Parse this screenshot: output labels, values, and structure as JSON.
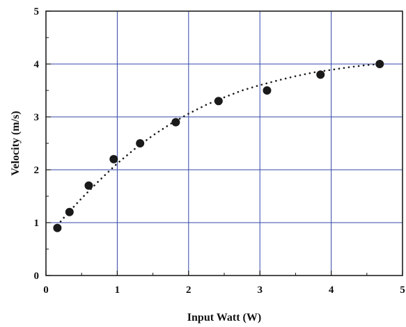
{
  "chart_data": {
    "type": "scatter",
    "title": "",
    "xlabel": "Input Watt (W)",
    "ylabel": "Velocity (m/s)",
    "xlim": [
      0,
      5
    ],
    "ylim": [
      0,
      5
    ],
    "x_ticks": [
      "0",
      "1",
      "2",
      "3",
      "4",
      "5"
    ],
    "y_ticks": [
      "0",
      "1",
      "2",
      "3",
      "4",
      "5"
    ],
    "grid": true,
    "series": [
      {
        "points": [
          {
            "x": 0.16,
            "y": 0.9
          },
          {
            "x": 0.33,
            "y": 1.2
          },
          {
            "x": 0.6,
            "y": 1.7
          },
          {
            "x": 0.95,
            "y": 2.2
          },
          {
            "x": 1.32,
            "y": 2.5
          },
          {
            "x": 1.82,
            "y": 2.9
          },
          {
            "x": 2.42,
            "y": 3.3
          },
          {
            "x": 3.1,
            "y": 3.5
          },
          {
            "x": 3.85,
            "y": 3.8
          },
          {
            "x": 4.68,
            "y": 4.0
          }
        ],
        "color": "#1a1a1a"
      }
    ],
    "fit_curve": {
      "style": "dotted",
      "color": "#1a1a1a",
      "x": [
        0.16,
        0.3,
        0.5,
        0.75,
        1.0,
        1.25,
        1.5,
        1.75,
        2.0,
        2.25,
        2.5,
        2.75,
        3.0,
        3.25,
        3.5,
        3.75,
        4.0,
        4.25,
        4.5,
        4.68
      ],
      "y": [
        0.95,
        1.17,
        1.46,
        1.8,
        2.12,
        2.4,
        2.65,
        2.87,
        3.06,
        3.23,
        3.37,
        3.5,
        3.6,
        3.69,
        3.77,
        3.84,
        3.89,
        3.94,
        3.98,
        4.0
      ]
    },
    "grid_color": "#3346a8",
    "axis_color": "#111111"
  }
}
